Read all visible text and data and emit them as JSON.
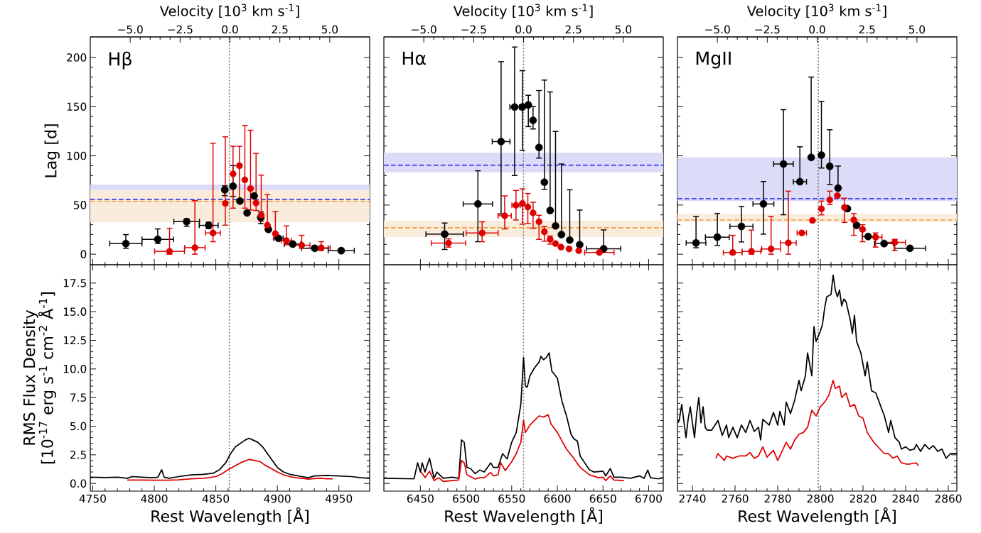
{
  "chart_data": [
    {
      "type": "scatter",
      "ylabel": "Lag [d]",
      "x2label": "Velocity [10$^{3}$ km s$^{-1}$]",
      "annotations": [
        "Hβ"
      ],
      "marker": "circle",
      "tick_labels": "y",
      "xlim": [
        4748,
        4975
      ],
      "xticks": [
        4750,
        4800,
        4850,
        4900,
        4950
      ],
      "ylim": [
        -10.7,
        220.9
      ],
      "yticks": [
        0,
        50,
        100,
        150,
        200
      ],
      "x2lim": [
        -7.0,
        7.0
      ],
      "x2ticks": [
        {
          "value": -5,
          "label": "−5.0"
        },
        {
          "value": -2.5,
          "label": "−2.5"
        },
        {
          "value": 0,
          "label": "0.0"
        },
        {
          "value": 2.5,
          "label": "2.5"
        },
        {
          "value": 5,
          "label": "5.0"
        }
      ],
      "bands": [
        {
          "axis": "y",
          "from": 52.3,
          "to": 70.8,
          "color": "#dcdcf8"
        },
        {
          "axis": "y",
          "from": 32.4,
          "to": 65.3,
          "color": "#faecdc"
        }
      ],
      "ref_lines": [
        {
          "axis": "x",
          "value": 4861,
          "color": "#808080",
          "line_style": "dotted"
        },
        {
          "axis": "y",
          "value": 55.7,
          "color": "#2020ee",
          "line_style": "dashed"
        },
        {
          "axis": "y",
          "value": 53.8,
          "color": "#f0a040",
          "line_style": "dashed"
        }
      ],
      "series": [
        {
          "color": "#000000",
          "x": [
            4776.9,
            4802.8,
            4826.3,
            4844.2,
            4857.3,
            4864.0,
            4869.6,
            4875.4,
            4881.1,
            4886.5,
            4892.7,
            4900.9,
            4912.5,
            4930.4,
            4951.9
          ],
          "values": [
            10.8,
            15.1,
            33.1,
            29.3,
            65.5,
            69.1,
            54.0,
            42.0,
            59.3,
            37.2,
            25.2,
            16.1,
            10.3,
            6.0,
            3.6
          ],
          "xerrors": [
            13.1,
            12.8,
            10.4,
            7.7,
            null,
            null,
            null,
            null,
            null,
            null,
            null,
            3.8,
            6.7,
            10.9,
            10.6
          ],
          "errors": [
            [
              6.0,
              19.9
            ],
            [
              10.8,
              25.7
            ],
            [
              28.3,
              36.0
            ],
            [
              26,
              32.5
            ],
            [
              59.5,
              69.5
            ],
            [
              58.8,
              90.0
            ],
            null,
            null,
            null,
            [
              31,
              43
            ],
            null,
            null,
            null,
            null,
            null
          ]
        },
        {
          "color": "#dd0000",
          "x": [
            4812.4,
            4833.0,
            4847.7,
            4857.7,
            4864.0,
            4869.2,
            4873.6,
            4878.2,
            4882.7,
            4886.9,
            4891.9,
            4898.4,
            4907.3,
            4919.8,
            4935.6
          ],
          "values": [
            2.9,
            6.7,
            21.6,
            51.6,
            81.6,
            90.0,
            75.6,
            66.7,
            52.1,
            39.6,
            29.5,
            20.9,
            13.9,
            9.1,
            6.5
          ],
          "xerrors": [
            12.1,
            8.3,
            6.0,
            null,
            null,
            null,
            null,
            null,
            null,
            null,
            null,
            null,
            4.0,
            6.7,
            7.3
          ],
          "errors": [
            [
              0,
              26.4
            ],
            [
              0,
              54.5
            ],
            [
              12.7,
              112.8
            ],
            [
              29.5,
              119.3
            ],
            [
              46.8,
              109.7
            ],
            [
              54,
              109.7
            ],
            [
              46.8,
              130.9
            ],
            [
              45,
              126
            ],
            [
              44.4,
              102.5
            ],
            [
              33.6,
              80.4
            ],
            [
              25.7,
              60.5
            ],
            [
              15.6,
              43.2
            ],
            [
              9.6,
              28.8
            ],
            [
              6.0,
              19.2
            ],
            [
              3.6,
              12.7
            ]
          ]
        }
      ]
    },
    {
      "type": "scatter",
      "x2label": "Velocity [10$^{3}$ km s$^{-1}$]",
      "annotations": [
        "Hα"
      ],
      "marker": "circle",
      "tick_labels": false,
      "xlim": [
        6410,
        6716
      ],
      "xticks": [
        6450,
        6500,
        6550,
        6600,
        6650,
        6700
      ],
      "ylim": [
        -10.7,
        220.9
      ],
      "yticks": [
        0,
        50,
        100,
        150,
        200
      ],
      "x2lim": [
        -7.0,
        7.0
      ],
      "x2ticks": [
        {
          "value": -5,
          "label": "−5.0"
        },
        {
          "value": -2.5,
          "label": "−2.5"
        },
        {
          "value": 0,
          "label": "0.0"
        },
        {
          "value": 2.5,
          "label": "2.5"
        },
        {
          "value": 5,
          "label": "5.0"
        }
      ],
      "bands": [
        {
          "axis": "y",
          "from": 83.3,
          "to": 103.2,
          "color": "#dcdcf8"
        },
        {
          "axis": "y",
          "from": 17.5,
          "to": 34.3,
          "color": "#faecdc"
        }
      ],
      "ref_lines": [
        {
          "axis": "x",
          "value": 6563,
          "color": "#808080",
          "line_style": "dotted"
        },
        {
          "axis": "y",
          "value": 90.5,
          "color": "#2020ee",
          "line_style": "dashed"
        },
        {
          "axis": "y",
          "value": 26.9,
          "color": "#f0a040",
          "line_style": "dashed"
        }
      ],
      "series": [
        {
          "color": "#000000",
          "x": [
            6476.6,
            6513.0,
            6538.4,
            6553.2,
            6561.7,
            6568.2,
            6573.4,
            6579.9,
            6585.8,
            6592.1,
            6598.0,
            6604.5,
            6613.6,
            6624.5,
            6650.7
          ],
          "values": [
            20.4,
            51.1,
            114.5,
            149.6,
            149.6,
            151.7,
            136.1,
            108.5,
            73.2,
            44.4,
            28.8,
            19.9,
            14.4,
            9.6,
            5.5
          ],
          "xerrors": [
            20.5,
            16.1,
            9.7,
            5.2,
            null,
            null,
            null,
            null,
            null,
            null,
            null,
            null,
            null,
            null,
            18.8
          ],
          "errors": [
            [
              4.8,
              31.7
            ],
            [
              12.7,
              84.8
            ],
            [
              40.8,
              195.7
            ],
            [
              80.0,
              210.6
            ],
            [
              105.6,
              186.6
            ],
            [
              129.7,
              161.6
            ],
            [
              127.3,
              150.1
            ],
            [
              97.7,
              166.4
            ],
            [
              66.0,
              177.0
            ],
            [
              44.4,
              165.0
            ],
            [
              28.8,
              124.8
            ],
            [
              19.9,
              91.7
            ],
            [
              14.4,
              65.5
            ],
            [
              9.6,
              44.9
            ],
            [
              5.5,
              24.7
            ]
          ]
        },
        {
          "color": "#dd0000",
          "x": [
            6480.8,
            6517.6,
            6542.3,
            6554.7,
            6561.7,
            6567.7,
            6573.4,
            6579.9,
            6585.8,
            6592.1,
            6598.0,
            6604.0,
            6612.8,
            6623.4,
            6646.0
          ],
          "values": [
            11.3,
            21.6,
            39.1,
            49.7,
            51.6,
            48.0,
            42.0,
            32.9,
            22.8,
            15.1,
            10.8,
            7.2,
            5.3,
            3.6,
            1.7
          ],
          "xerrors": [
            18.8,
            17.5,
            7.3,
            4.5,
            null,
            null,
            null,
            null,
            null,
            null,
            null,
            null,
            null,
            null,
            16.1
          ],
          "errors": [
            [
              7.2,
              15.6
            ],
            [
              12.7,
              32.9
            ],
            [
              25.7,
              59.3
            ],
            [
              34.8,
              64.8
            ],
            [
              30.5,
              66.5
            ],
            [
              31.2,
              61.7
            ],
            [
              26.4,
              52.8
            ],
            [
              15.1,
              39.6
            ],
            [
              13.2,
              28.1
            ],
            [
              10.3,
              18.5
            ],
            null,
            null,
            null,
            null,
            null
          ]
        }
      ]
    },
    {
      "type": "scatter",
      "x2label": "Velocity [10$^{3}$ km s$^{-1}$]",
      "annotations": [
        "MgII"
      ],
      "marker": "circle",
      "tick_labels": false,
      "xlim": [
        2733,
        2864
      ],
      "xticks": [
        2740,
        2760,
        2780,
        2800,
        2820,
        2840,
        2860
      ],
      "ylim": [
        -10.7,
        220.9
      ],
      "yticks": [
        0,
        50,
        100,
        150,
        200
      ],
      "x2lim": [
        -7.0,
        7.0
      ],
      "x2ticks": [
        {
          "value": -5,
          "label": "−5.0"
        },
        {
          "value": -2.5,
          "label": "−2.5"
        },
        {
          "value": 0,
          "label": "0.0"
        },
        {
          "value": 2.5,
          "label": "2.5"
        },
        {
          "value": 5,
          "label": "5.0"
        }
      ],
      "bands": [
        {
          "axis": "y",
          "from": 54.0,
          "to": 98.4,
          "color": "#dcdcf8"
        },
        {
          "axis": "y",
          "from": 32.9,
          "to": 40.8,
          "color": "#faecdc"
        }
      ],
      "ref_lines": [
        {
          "axis": "x",
          "value": 2799,
          "color": "#808080",
          "line_style": "dotted"
        },
        {
          "axis": "y",
          "value": 56.4,
          "color": "#2020ee",
          "line_style": "dashed"
        },
        {
          "axis": "y",
          "value": 34.8,
          "color": "#f0a040",
          "line_style": "dashed"
        }
      ],
      "series": [
        {
          "color": "#000000",
          "x": [
            2741.7,
            2751.7,
            2763.0,
            2773.3,
            2782.7,
            2790.4,
            2795.7,
            2800.5,
            2804.4,
            2808.3,
            2812.7,
            2817.0,
            2822.4,
            2829.9,
            2842.0
          ],
          "values": [
            11.5,
            17.3,
            28.3,
            51.1,
            91.7,
            73.7,
            98.4,
            100.8,
            89.3,
            67.2,
            46.3,
            29.3,
            18.0,
            10.8,
            6.0
          ],
          "xerrors": [
            4.6,
            5.6,
            5.4,
            4.9,
            4.6,
            3.1,
            null,
            null,
            null,
            null,
            null,
            null,
            2.8,
            4.5,
            7.3
          ],
          "errors": [
            [
              6.5,
              38.4
            ],
            [
              8.9,
              41.5
            ],
            [
              12.5,
              48.5
            ],
            [
              20.4,
              73.9
            ],
            [
              40.1,
              146.9
            ],
            [
              73.7,
              109.2
            ],
            [
              98.4,
              180.1
            ],
            [
              87.6,
              155.3
            ],
            [
              70.8,
              126.5
            ],
            [
              67.2,
              89.6
            ],
            null,
            null,
            null,
            null,
            null
          ]
        },
        {
          "color": "#dd0000",
          "x": [
            2758.9,
            2767.7,
            2776.9,
            2785.0,
            2791.3,
            2796.3,
            2800.5,
            2804.4,
            2808.0,
            2811.3,
            2815.7,
            2819.8,
            2825.9,
            2834.9
          ],
          "values": [
            1.7,
            2.9,
            5.3,
            11.5,
            21.6,
            34.3,
            46.1,
            55.2,
            59.5,
            47.5,
            34.8,
            25.2,
            17.3,
            12.0
          ],
          "xerrors": [
            4.4,
            4.4,
            4.4,
            3.7,
            2.2,
            null,
            null,
            null,
            null,
            null,
            null,
            null,
            3.0,
            5.0
          ],
          "errors": [
            [
              0,
              19.2
            ],
            [
              0,
              24.5
            ],
            [
              0,
              38.4
            ],
            [
              0,
              64.1
            ],
            null,
            null,
            [
              40,
              54
            ],
            [
              50.4,
              64.1
            ],
            null,
            [
              32.4,
              56.9
            ],
            [
              19.2,
              41.3
            ],
            [
              12.7,
              30.0
            ],
            [
              7.2,
              21.6
            ],
            [
              3.6,
              15.1
            ]
          ]
        }
      ]
    },
    {
      "type": "line",
      "xlabel": "Rest Wavelength [Å]",
      "ylabel": "RMS Flux Density [10$^{-17}$ erg s$^{-1}$ cm$^{-2}$ Å$^{-1}$]",
      "xlim": [
        4748,
        4975
      ],
      "xticks": [
        4750,
        4800,
        4850,
        4900,
        4950
      ],
      "ylim": [
        -0.67,
        19.1
      ],
      "yticks": [
        {
          "value": 0,
          "label": "0.0"
        },
        2.5,
        {
          "value": 5,
          "label": "5.0"
        },
        7.5,
        {
          "value": 10,
          "label": "10.0"
        },
        12.5,
        {
          "value": 15,
          "label": "15.0"
        },
        17.5
      ],
      "ref_lines": [
        {
          "axis": "x",
          "value": 4861,
          "color": "#808080",
          "line_style": "dotted"
        }
      ],
      "series": [
        {
          "color": "#000000",
          "x": [
            4748,
            4760,
            4770,
            4778,
            4782,
            4790,
            4798,
            4803,
            4806,
            4808,
            4812,
            4820,
            4830,
            4840,
            4848,
            4853,
            4858,
            4862,
            4866,
            4870,
            4874,
            4877,
            4880,
            4884,
            4888,
            4892,
            4896,
            4900,
            4905,
            4910,
            4915,
            4920,
            4925,
            4930,
            4940,
            4950,
            4960,
            4968,
            4975
          ],
          "values": [
            0.55,
            0.52,
            0.55,
            0.45,
            0.6,
            0.55,
            0.5,
            0.55,
            1.2,
            0.55,
            0.45,
            0.6,
            0.75,
            0.8,
            0.9,
            1.2,
            1.8,
            2.6,
            3.2,
            3.5,
            3.8,
            3.95,
            3.8,
            3.6,
            3.2,
            2.6,
            2.0,
            1.4,
            1.0,
            0.8,
            0.7,
            0.6,
            0.5,
            0.65,
            0.7,
            0.65,
            0.6,
            0.5,
            0.45
          ]
        },
        {
          "color": "#dd0000",
          "x": [
            4778,
            4790,
            4800,
            4810,
            4820,
            4830,
            4840,
            4850,
            4855,
            4860,
            4865,
            4870,
            4877,
            4882,
            4886,
            4890,
            4895,
            4900,
            4905,
            4910,
            4915,
            4920,
            4925,
            4930,
            4935,
            4940,
            4945
          ],
          "values": [
            0.3,
            0.3,
            0.28,
            0.28,
            0.32,
            0.4,
            0.45,
            0.6,
            0.85,
            1.2,
            1.5,
            1.8,
            2.1,
            2.0,
            1.9,
            1.6,
            1.3,
            1.0,
            0.75,
            0.6,
            0.5,
            0.45,
            0.38,
            0.42,
            0.45,
            0.4,
            0.4
          ]
        }
      ]
    },
    {
      "type": "line",
      "xlabel": "Rest Wavelength [Å]",
      "tick_labels": "x",
      "xlim": [
        6410,
        6716
      ],
      "xticks": [
        6450,
        6500,
        6550,
        6600,
        6650,
        6700
      ],
      "ylim": [
        -0.67,
        19.1
      ],
      "yticks": [
        0,
        2.5,
        5,
        7.5,
        10,
        12.5,
        15,
        17.5
      ],
      "ref_lines": [
        {
          "axis": "x",
          "value": 6563,
          "color": "#808080",
          "line_style": "dotted"
        }
      ],
      "series": [
        {
          "color": "#000000",
          "x": [
            6410,
            6440,
            6443,
            6447,
            6450,
            6452,
            6455,
            6460,
            6465,
            6468,
            6475,
            6485,
            6492,
            6495,
            6498,
            6501,
            6505,
            6510,
            6515,
            6520,
            6527,
            6530,
            6535,
            6540,
            6545,
            6550,
            6555,
            6560,
            6563,
            6565,
            6567,
            6570,
            6575,
            6580,
            6582,
            6585,
            6588,
            6591,
            6594,
            6600,
            6605,
            6610,
            6615,
            6618,
            6622,
            6625,
            6630,
            6635,
            6640,
            6650,
            6653,
            6658,
            6662,
            6670,
            6680,
            6690,
            6695,
            6699,
            6702,
            6710,
            6716
          ],
          "values": [
            0.45,
            0.4,
            0.4,
            1.8,
            1.0,
            1.8,
            1.0,
            2.2,
            0.45,
            1.0,
            0.45,
            0.55,
            0.45,
            3.8,
            3.6,
            1.4,
            1.3,
            0.86,
            1.17,
            1.0,
            1.8,
            1.4,
            1.4,
            2.6,
            2.15,
            3.6,
            4.45,
            6.9,
            11.0,
            8.5,
            8.4,
            9.4,
            10.1,
            10.6,
            11.1,
            10.8,
            11.0,
            11.4,
            9.8,
            9.2,
            7.2,
            5.9,
            4.3,
            3.9,
            3.7,
            2.4,
            1.8,
            1.2,
            1.0,
            1.07,
            0.66,
            1.3,
            0.55,
            0.55,
            0.45,
            0.66,
            0.45,
            1.17,
            0.5,
            0.4,
            0.5
          ]
        },
        {
          "color": "#dd0000",
          "x": [
            6451,
            6455,
            6460,
            6465,
            6470,
            6475,
            6485,
            6492,
            6495,
            6498,
            6501,
            6510,
            6515,
            6520,
            6527,
            6530,
            6535,
            6538,
            6543,
            6550,
            6555,
            6560,
            6563,
            6565,
            6570,
            6575,
            6580,
            6585,
            6590,
            6593,
            6600,
            6610,
            6618,
            6625,
            6635,
            6645,
            6650,
            6653,
            6658,
            6662,
            6673
          ],
          "values": [
            1.0,
            0.5,
            1.07,
            0.25,
            0.5,
            0.18,
            0.25,
            0.3,
            2.0,
            1.8,
            0.76,
            0.39,
            0.5,
            0.5,
            0.96,
            0.66,
            0.76,
            1.8,
            1.13,
            1.9,
            2.6,
            3.6,
            5.5,
            4.45,
            5.1,
            5.5,
            5.9,
            5.8,
            6.0,
            5.2,
            4.45,
            3.0,
            2.2,
            1.4,
            0.76,
            0.5,
            0.55,
            0.25,
            0.66,
            0.3,
            0.25
          ]
        }
      ]
    },
    {
      "type": "line",
      "xlabel": "Rest Wavelength [Å]",
      "tick_labels": "x",
      "xlim": [
        2733,
        2864
      ],
      "xticks": [
        2740,
        2760,
        2780,
        2800,
        2820,
        2840,
        2860
      ],
      "ylim": [
        -0.67,
        19.1
      ],
      "yticks": [
        0,
        2.5,
        5,
        7.5,
        10,
        12.5,
        15,
        17.5
      ],
      "ref_lines": [
        {
          "axis": "x",
          "value": 2799,
          "color": "#808080",
          "line_style": "dotted"
        }
      ],
      "series": [
        {
          "color": "#000000",
          "x": [
            2733.3,
            2734,
            2735,
            2737,
            2738,
            2739,
            2740,
            2741,
            2742,
            2743,
            2744,
            2745,
            2746,
            2747,
            2749,
            2752,
            2754,
            2756,
            2757,
            2759,
            2761,
            2763,
            2765,
            2767,
            2769,
            2771,
            2772,
            2773,
            2776,
            2778,
            2780,
            2781,
            2783,
            2784,
            2786,
            2788,
            2790,
            2791,
            2793,
            2794,
            2796,
            2797,
            2798,
            2800,
            2801,
            2802,
            2803,
            2805,
            2806,
            2807,
            2808,
            2809,
            2810,
            2811,
            2812,
            2814,
            2815,
            2816,
            2817,
            2819,
            2821,
            2822,
            2824,
            2826,
            2828,
            2830,
            2832,
            2833,
            2835,
            2837,
            2838,
            2840,
            2842,
            2844,
            2845,
            2847,
            2849,
            2851,
            2853,
            2855,
            2857,
            2859,
            2861,
            2864
          ],
          "values": [
            5.3,
            5.7,
            6.9,
            4.0,
            5.6,
            6.7,
            5.3,
            4.0,
            6.1,
            7.5,
            5.3,
            6.7,
            4.9,
            4.65,
            4.65,
            5.5,
            4.2,
            5.1,
            4.0,
            4.9,
            4.0,
            5.1,
            4.45,
            5.5,
            4.55,
            4.9,
            3.8,
            5.6,
            5.1,
            6.2,
            5.1,
            6.3,
            5.1,
            7.1,
            6.1,
            7.3,
            9.0,
            8.1,
            9.4,
            11.4,
            9.4,
            13.7,
            12.4,
            13.3,
            13.9,
            15.3,
            16.3,
            16.5,
            18.2,
            16.9,
            16.3,
            16.9,
            15.5,
            16.1,
            15.9,
            14.3,
            13.1,
            14.7,
            12.4,
            11.4,
            9.4,
            10.6,
            8.1,
            7.9,
            6.9,
            5.9,
            4.45,
            5.5,
            4.0,
            3.6,
            3.0,
            3.2,
            2.9,
            3.0,
            3.4,
            2.8,
            3.4,
            3.0,
            3.3,
            2.8,
            3.0,
            2.2,
            2.6,
            2.6
          ]
        },
        {
          "color": "#dd0000",
          "x": [
            2751,
            2752,
            2754,
            2755,
            2756,
            2759,
            2762,
            2765,
            2767,
            2769,
            2771,
            2773,
            2775,
            2778,
            2780,
            2782,
            2784,
            2786,
            2788,
            2790,
            2792,
            2794,
            2796,
            2798,
            2800,
            2802,
            2804,
            2806,
            2807,
            2809,
            2810,
            2812,
            2814,
            2816,
            2818,
            2820,
            2822,
            2825,
            2828,
            2830,
            2832,
            2834,
            2836,
            2838,
            2840,
            2842,
            2845,
            2846
          ],
          "values": [
            2.2,
            2.6,
            2.2,
            2.0,
            2.4,
            2.2,
            2.4,
            2.4,
            2.7,
            2.2,
            2.4,
            3.2,
            2.3,
            2.9,
            2.0,
            2.8,
            3.6,
            3.0,
            3.8,
            4.3,
            4.45,
            4.9,
            6.4,
            5.9,
            6.7,
            7.1,
            7.7,
            9.0,
            8.3,
            8.5,
            7.5,
            7.9,
            6.7,
            6.9,
            5.9,
            5.7,
            4.45,
            3.6,
            3.0,
            2.6,
            2.6,
            2.2,
            2.4,
            1.8,
            1.7,
            1.7,
            1.8,
            1.55
          ]
        }
      ]
    }
  ]
}
